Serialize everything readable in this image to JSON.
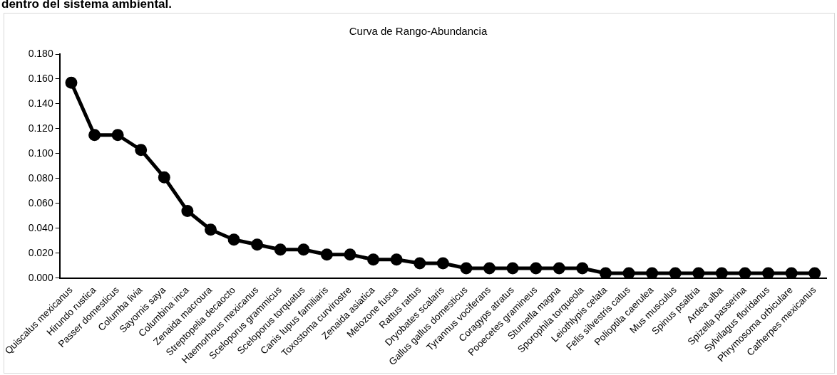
{
  "chart_data": {
    "type": "line",
    "title": "Curva de Rango-Abundancia",
    "annotations": [
      "dentro del sistema ambiental."
    ],
    "categories": [
      "Quiscalus mexicanus",
      "Hirundo rustica",
      "Passer domesticus",
      "Columba livia",
      "Sayornis saya",
      "Columbina inca",
      "Zenaida macroura",
      "Streptopelia decaocto",
      "Haemorhous mexicanus",
      "Sceloporus grammicus",
      "Sceloporus torquatus",
      "Canis lupus familiaris",
      "Toxostoma curvirostre",
      "Zenaida asiatica",
      "Melozone fusca",
      "Rattus rattus",
      "Dryobates scalaris",
      "Gallus gallus domesticus",
      "Tyrannus vociferans",
      "Coragyps atratus",
      "Pooecetes gramineus",
      "Sturnella magna",
      "Sporophila torqueola",
      "Leiothlypis celata",
      "Felis silvestris catus",
      "Polioptila caerulea",
      "Mus musculus",
      "Spinus psaltria",
      "Ardea alba",
      "Spizella passerina",
      "Sylvilagus floridanus",
      "Phrymosoma orbiculare",
      "Catherpes mexicanus"
    ],
    "series": [
      {
        "color": "#000000",
        "values": [
          0.157,
          0.115,
          0.115,
          0.103,
          0.081,
          0.054,
          0.039,
          0.031,
          0.027,
          0.023,
          0.023,
          0.019,
          0.019,
          0.015,
          0.015,
          0.012,
          0.012,
          0.008,
          0.008,
          0.008,
          0.008,
          0.008,
          0.008,
          0.004,
          0.004,
          0.004,
          0.004,
          0.004,
          0.004,
          0.004,
          0.004,
          0.004,
          0.004
        ]
      }
    ],
    "ylim": [
      0,
      0.18
    ],
    "yticks": [
      {
        "value": 0,
        "label": "0.000"
      },
      {
        "value": 0.02,
        "label": "0.020"
      },
      {
        "value": 0.04,
        "label": "0.040"
      },
      {
        "value": 0.06,
        "label": "0.060"
      },
      {
        "value": 0.08,
        "label": "0.080"
      },
      {
        "value": 0.1,
        "label": "0.100"
      },
      {
        "value": 0.12,
        "label": "0.120"
      },
      {
        "value": 0.14,
        "label": "0.140"
      },
      {
        "value": 0.16,
        "label": "0.160"
      },
      {
        "value": 0.18,
        "label": "0.180"
      }
    ],
    "grid": false,
    "legend": false,
    "marker": "circle",
    "line_style": "solid"
  }
}
